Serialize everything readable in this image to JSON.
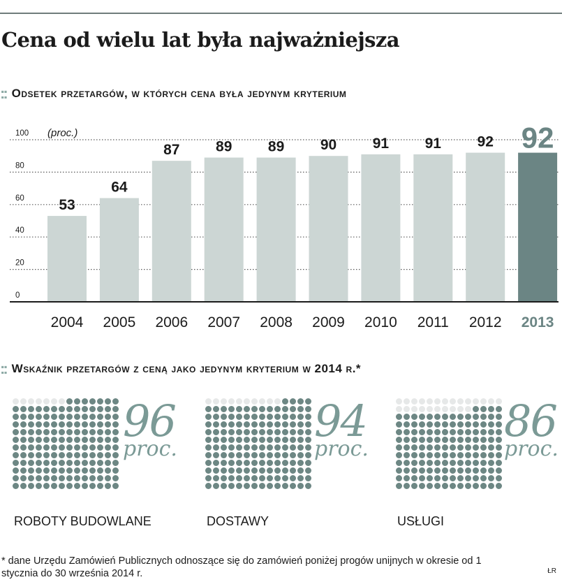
{
  "headline": "Cena od wielu lat była najważniejsza",
  "section_marker": "::",
  "chart_data": {
    "type": "bar",
    "title": "Odsetek przetargów, w których cena była jedynym kryterium",
    "unit_label": "(proc.)",
    "categories": [
      "2004",
      "2005",
      "2006",
      "2007",
      "2008",
      "2009",
      "2010",
      "2011",
      "2012",
      "2013"
    ],
    "values": [
      53,
      64,
      87,
      89,
      89,
      90,
      91,
      91,
      92,
      92
    ],
    "highlight_index": 9,
    "ylim": [
      0,
      100
    ],
    "yticks": [
      0,
      20,
      40,
      60,
      80,
      100
    ],
    "xlabel": "",
    "ylabel": "",
    "grid": "dotted horizontal",
    "colors": {
      "bar": "#ccd6d4",
      "bar_highlight": "#6b8584",
      "highlight_text": "#6b8584",
      "text": "#1b1b1b"
    }
  },
  "section2": {
    "title": "Wskaźnik przetargów z ceną jako jedynym kryterium w 2014 r.*",
    "waffles": [
      {
        "label": "ROBOTY BUDOWLANE",
        "value": "96",
        "unit": "proc.",
        "percent": 96
      },
      {
        "label": "DOSTAWY",
        "value": "94",
        "unit": "proc.",
        "percent": 94
      },
      {
        "label": "USŁUGI",
        "value": "86",
        "unit": "proc.",
        "percent": 86
      }
    ]
  },
  "footnote": "* dane Urzędu Zamówień Publicznych odnoszące się do zamówień poniżej progów unijnych w okresie od 1 stycznia do 30 września 2014 r.",
  "credit": "ŁR"
}
